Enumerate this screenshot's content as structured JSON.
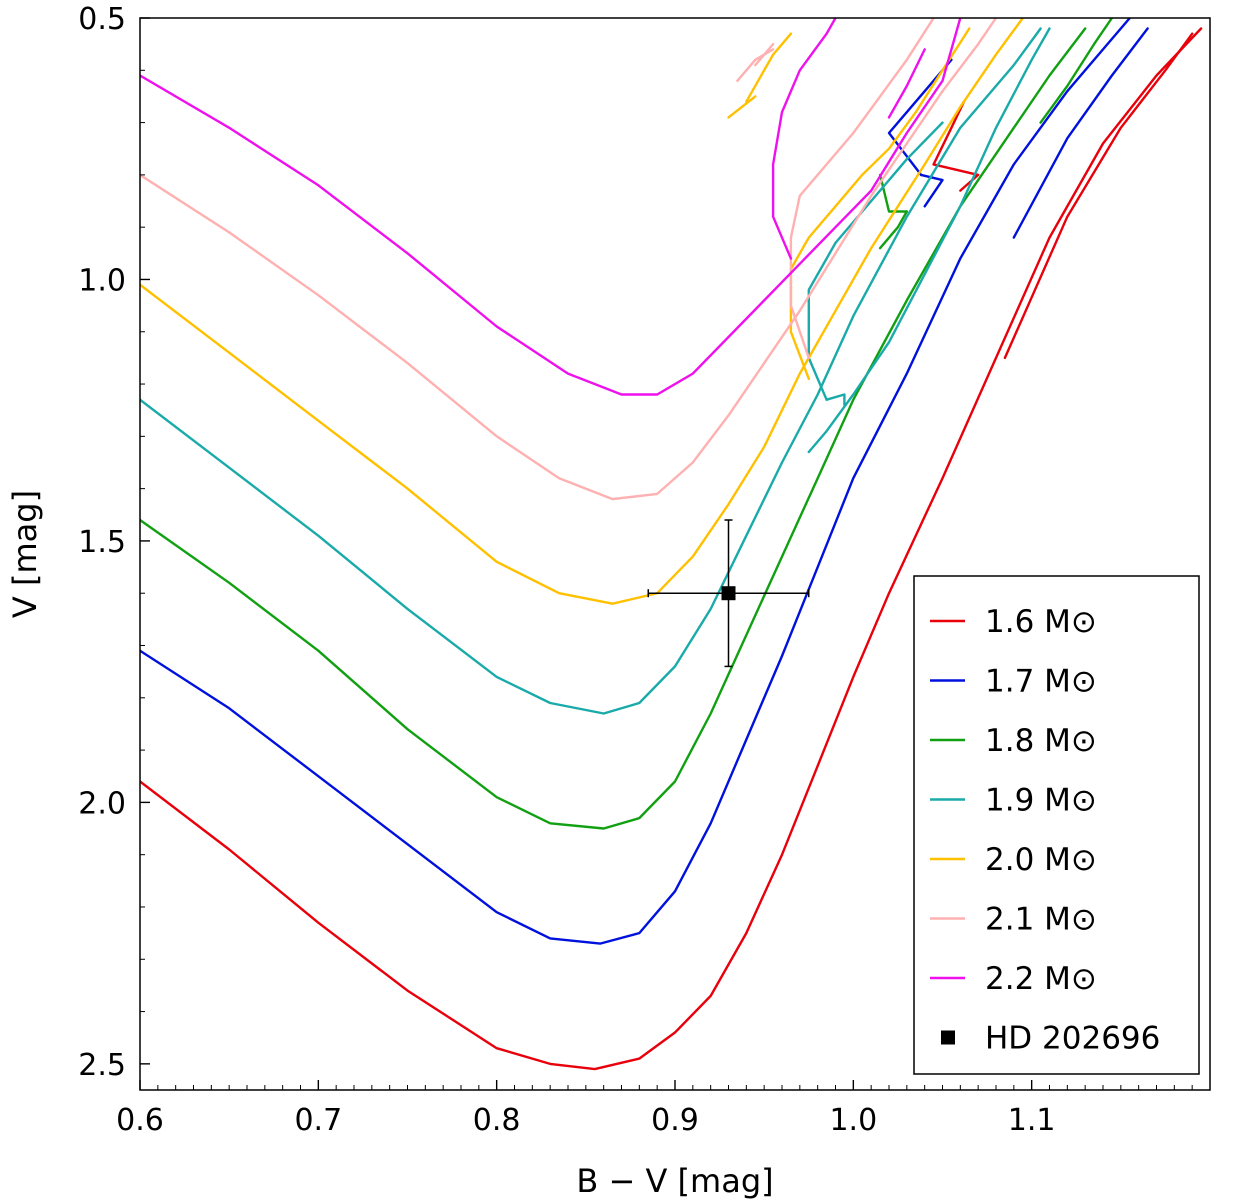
{
  "chart_data": {
    "type": "line",
    "title": "",
    "xlabel": "B − V [mag]",
    "ylabel": "V [mag]",
    "xlim": [
      0.6,
      1.2
    ],
    "ylim": [
      2.55,
      0.5
    ],
    "y_inverted": true,
    "grid": false,
    "legend_position": "bottom-right",
    "x_ticks": [
      "0.6",
      "0.7",
      "0.8",
      "0.9",
      "1.0",
      "1.1"
    ],
    "x_tick_values": [
      0.6,
      0.7,
      0.8,
      0.9,
      1.0,
      1.1
    ],
    "y_ticks": [
      "0.5",
      "1.0",
      "1.5",
      "2.0",
      "2.5"
    ],
    "y_tick_values": [
      0.5,
      1.0,
      1.5,
      2.0,
      2.5
    ],
    "series": [
      {
        "name": "1.6 M⊙",
        "color": "#e8000b",
        "main": [
          [
            0.6,
            1.96
          ],
          [
            0.65,
            2.09
          ],
          [
            0.7,
            2.23
          ],
          [
            0.75,
            2.36
          ],
          [
            0.8,
            2.47
          ],
          [
            0.83,
            2.5
          ],
          [
            0.855,
            2.51
          ],
          [
            0.88,
            2.49
          ],
          [
            0.9,
            2.44
          ],
          [
            0.92,
            2.37
          ],
          [
            0.94,
            2.25
          ],
          [
            0.96,
            2.1
          ],
          [
            0.98,
            1.93
          ],
          [
            1.0,
            1.76
          ],
          [
            1.02,
            1.6
          ],
          [
            1.05,
            1.38
          ],
          [
            1.08,
            1.15
          ],
          [
            1.11,
            0.92
          ],
          [
            1.14,
            0.74
          ],
          [
            1.17,
            0.61
          ],
          [
            1.195,
            0.52
          ]
        ],
        "extra": [
          [
            [
              1.085,
              1.15
            ],
            [
              1.12,
              0.88
            ],
            [
              1.15,
              0.71
            ],
            [
              1.175,
              0.6
            ],
            [
              1.19,
              0.53
            ]
          ],
          [
            [
              1.045,
              0.78
            ],
            [
              1.055,
              0.71
            ],
            [
              1.062,
              0.66
            ]
          ],
          [
            [
              1.045,
              0.78
            ],
            [
              1.07,
              0.8
            ],
            [
              1.06,
              0.83
            ]
          ]
        ]
      },
      {
        "name": "1.7 M⊙",
        "color": "#0011dd",
        "main": [
          [
            0.6,
            1.71
          ],
          [
            0.65,
            1.82
          ],
          [
            0.7,
            1.95
          ],
          [
            0.75,
            2.08
          ],
          [
            0.8,
            2.21
          ],
          [
            0.83,
            2.26
          ],
          [
            0.858,
            2.27
          ],
          [
            0.88,
            2.25
          ],
          [
            0.9,
            2.17
          ],
          [
            0.92,
            2.04
          ],
          [
            0.94,
            1.88
          ],
          [
            0.96,
            1.72
          ],
          [
            0.98,
            1.55
          ],
          [
            1.0,
            1.38
          ],
          [
            1.03,
            1.18
          ],
          [
            1.06,
            0.96
          ],
          [
            1.09,
            0.78
          ],
          [
            1.12,
            0.64
          ],
          [
            1.14,
            0.56
          ],
          [
            1.155,
            0.5
          ]
        ],
        "extra": [
          [
            [
              1.09,
              0.92
            ],
            [
              1.12,
              0.73
            ],
            [
              1.145,
              0.61
            ],
            [
              1.165,
              0.52
            ]
          ],
          [
            [
              1.038,
              0.8
            ],
            [
              1.02,
              0.72
            ],
            [
              1.04,
              0.64
            ],
            [
              1.055,
              0.58
            ]
          ],
          [
            [
              1.038,
              0.8
            ],
            [
              1.05,
              0.81
            ],
            [
              1.04,
              0.86
            ]
          ]
        ]
      },
      {
        "name": "1.8 M⊙",
        "color": "#11a011",
        "main": [
          [
            0.6,
            1.46
          ],
          [
            0.65,
            1.58
          ],
          [
            0.7,
            1.71
          ],
          [
            0.75,
            1.86
          ],
          [
            0.8,
            1.99
          ],
          [
            0.83,
            2.04
          ],
          [
            0.86,
            2.05
          ],
          [
            0.88,
            2.03
          ],
          [
            0.9,
            1.96
          ],
          [
            0.92,
            1.83
          ],
          [
            0.94,
            1.68
          ],
          [
            0.96,
            1.53
          ],
          [
            0.98,
            1.38
          ],
          [
            1.0,
            1.23
          ],
          [
            1.03,
            1.04
          ],
          [
            1.06,
            0.86
          ],
          [
            1.09,
            0.71
          ],
          [
            1.11,
            0.61
          ],
          [
            1.13,
            0.52
          ]
        ],
        "extra": [
          [
            [
              1.105,
              0.7
            ],
            [
              1.12,
              0.63
            ],
            [
              1.135,
              0.55
            ],
            [
              1.145,
              0.5
            ]
          ],
          [
            [
              1.015,
              0.8
            ],
            [
              1.02,
              0.87
            ],
            [
              1.03,
              0.87
            ]
          ],
          [
            [
              1.03,
              0.87
            ],
            [
              1.025,
              0.9
            ],
            [
              1.015,
              0.94
            ]
          ]
        ]
      },
      {
        "name": "1.9 M⊙",
        "color": "#1aaaaa",
        "main": [
          [
            0.6,
            1.23
          ],
          [
            0.65,
            1.36
          ],
          [
            0.7,
            1.49
          ],
          [
            0.75,
            1.63
          ],
          [
            0.8,
            1.76
          ],
          [
            0.83,
            1.81
          ],
          [
            0.86,
            1.83
          ],
          [
            0.88,
            1.81
          ],
          [
            0.9,
            1.74
          ],
          [
            0.92,
            1.63
          ],
          [
            0.94,
            1.49
          ],
          [
            0.96,
            1.35
          ],
          [
            0.98,
            1.22
          ],
          [
            1.0,
            1.07
          ],
          [
            1.03,
            0.88
          ],
          [
            1.06,
            0.71
          ],
          [
            1.09,
            0.59
          ],
          [
            1.105,
            0.52
          ]
        ],
        "extra": [
          [
            [
              0.975,
              1.33
            ],
            [
              0.985,
              1.29
            ],
            [
              1.0,
              1.22
            ],
            [
              1.02,
              1.12
            ],
            [
              1.04,
              0.99
            ],
            [
              1.06,
              0.86
            ],
            [
              1.08,
              0.71
            ],
            [
              1.1,
              0.58
            ],
            [
              1.11,
              0.52
            ]
          ],
          [
            [
              0.985,
              1.23
            ],
            [
              0.975,
              1.15
            ],
            [
              0.975,
              1.02
            ],
            [
              0.99,
              0.93
            ],
            [
              1.01,
              0.85
            ],
            [
              1.03,
              0.77
            ],
            [
              1.05,
              0.7
            ]
          ],
          [
            [
              0.985,
              1.23
            ],
            [
              0.995,
              1.22
            ],
            [
              0.995,
              1.24
            ]
          ]
        ]
      },
      {
        "name": "2.0 M⊙",
        "color": "#ffc000",
        "main": [
          [
            0.6,
            1.01
          ],
          [
            0.65,
            1.14
          ],
          [
            0.7,
            1.27
          ],
          [
            0.75,
            1.4
          ],
          [
            0.8,
            1.54
          ],
          [
            0.835,
            1.6
          ],
          [
            0.865,
            1.62
          ],
          [
            0.89,
            1.6
          ],
          [
            0.91,
            1.53
          ],
          [
            0.93,
            1.43
          ],
          [
            0.95,
            1.32
          ],
          [
            0.97,
            1.18
          ],
          [
            0.99,
            1.06
          ],
          [
            1.01,
            0.94
          ],
          [
            1.04,
            0.78
          ],
          [
            1.06,
            0.67
          ],
          [
            1.08,
            0.57
          ],
          [
            1.095,
            0.5
          ]
        ],
        "extra": [
          [
            [
              0.975,
              1.19
            ],
            [
              0.965,
              1.1
            ],
            [
              0.965,
              0.98
            ],
            [
              0.975,
              0.92
            ],
            [
              0.99,
              0.86
            ],
            [
              1.005,
              0.8
            ],
            [
              1.02,
              0.75
            ],
            [
              1.035,
              0.68
            ],
            [
              1.05,
              0.6
            ],
            [
              1.065,
              0.52
            ]
          ],
          [
            [
              0.94,
              0.66
            ],
            [
              0.955,
              0.57
            ],
            [
              0.965,
              0.53
            ]
          ],
          [
            [
              0.945,
              0.65
            ],
            [
              0.93,
              0.69
            ]
          ]
        ]
      },
      {
        "name": "2.1 M⊙",
        "color": "#ffb0b0",
        "main": [
          [
            0.6,
            0.8
          ],
          [
            0.65,
            0.91
          ],
          [
            0.7,
            1.03
          ],
          [
            0.75,
            1.16
          ],
          [
            0.8,
            1.3
          ],
          [
            0.835,
            1.38
          ],
          [
            0.865,
            1.42
          ],
          [
            0.89,
            1.41
          ],
          [
            0.91,
            1.35
          ],
          [
            0.93,
            1.26
          ],
          [
            0.95,
            1.16
          ],
          [
            0.97,
            1.06
          ],
          [
            0.99,
            0.95
          ],
          [
            1.01,
            0.84
          ],
          [
            1.03,
            0.74
          ],
          [
            1.05,
            0.64
          ],
          [
            1.07,
            0.55
          ],
          [
            1.08,
            0.5
          ]
        ],
        "extra": [
          [
            [
              0.975,
              1.15
            ],
            [
              0.965,
              1.05
            ],
            [
              0.965,
              0.92
            ],
            [
              0.97,
              0.84
            ],
            [
              0.985,
              0.78
            ],
            [
              1.0,
              0.72
            ],
            [
              1.015,
              0.65
            ],
            [
              1.03,
              0.58
            ],
            [
              1.045,
              0.5
            ]
          ],
          [
            [
              0.935,
              0.62
            ],
            [
              0.945,
              0.58
            ],
            [
              0.955,
              0.56
            ]
          ],
          [
            [
              0.945,
              0.59
            ],
            [
              0.955,
              0.55
            ]
          ]
        ]
      },
      {
        "name": "2.2 M⊙",
        "color": "#ee11ee",
        "main": [
          [
            0.6,
            0.61
          ],
          [
            0.65,
            0.71
          ],
          [
            0.7,
            0.82
          ],
          [
            0.75,
            0.95
          ],
          [
            0.8,
            1.09
          ],
          [
            0.84,
            1.18
          ],
          [
            0.87,
            1.22
          ],
          [
            0.89,
            1.22
          ],
          [
            0.91,
            1.18
          ],
          [
            0.93,
            1.11
          ],
          [
            0.95,
            1.04
          ],
          [
            0.97,
            0.97
          ],
          [
            0.99,
            0.9
          ],
          [
            1.01,
            0.83
          ],
          [
            1.03,
            0.72
          ],
          [
            1.05,
            0.62
          ],
          [
            1.06,
            0.5
          ]
        ],
        "extra": [
          [
            [
              0.965,
              0.96
            ],
            [
              0.955,
              0.88
            ],
            [
              0.955,
              0.78
            ],
            [
              0.96,
              0.68
            ],
            [
              0.97,
              0.6
            ],
            [
              0.985,
              0.53
            ],
            [
              0.99,
              0.5
            ]
          ],
          [
            [
              1.02,
              0.69
            ],
            [
              1.03,
              0.63
            ],
            [
              1.04,
              0.56
            ]
          ]
        ]
      }
    ],
    "observation": {
      "name": "HD 202696",
      "x": 0.93,
      "y": 1.6,
      "x_err": 0.045,
      "y_err": 0.14,
      "color": "#000000"
    }
  }
}
